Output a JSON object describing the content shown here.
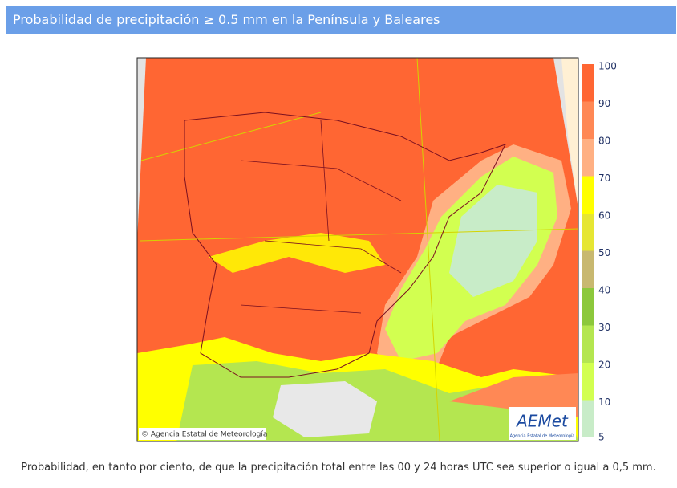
{
  "header": {
    "title": "Probabilidad de precipitación ≥ 0.5 mm en la Península y Baleares"
  },
  "map": {
    "credit": "© Agencia Estatal de Meteorología",
    "logo": "AEMet",
    "logo_subtitle": "Agencia Estatal de Meteorología"
  },
  "legend": {
    "levels": [
      100,
      90,
      80,
      70,
      60,
      50,
      40,
      30,
      20,
      10,
      5
    ],
    "colors": [
      "#ff6633",
      "#ff8855",
      "#ffb083",
      "#ffff00",
      "#e6e633",
      "#c8b870",
      "#8cc83c",
      "#b4e650",
      "#d2ff50",
      "#c8ecc8"
    ]
  },
  "caption": "Probabilidad, en tanto por ciento, de que la precipitación total entre las 00 y 24 horas UTC sea superior o igual a 0,5 mm."
}
